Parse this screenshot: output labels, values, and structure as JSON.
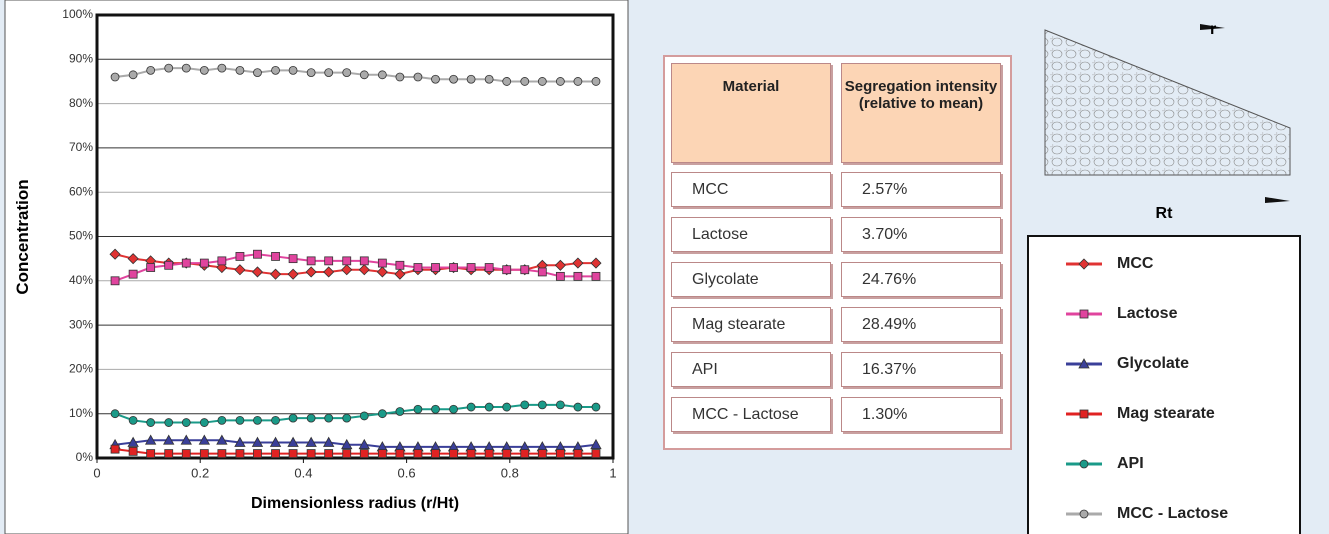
{
  "chart_data": {
    "type": "line",
    "x_label": "Dimensionless radius (r/Ht)",
    "y_label": "Concentration",
    "x": [
      0.035,
      0.07,
      0.104,
      0.139,
      0.173,
      0.208,
      0.242,
      0.277,
      0.311,
      0.346,
      0.38,
      0.415,
      0.449,
      0.484,
      0.518,
      0.553,
      0.587,
      0.622,
      0.656,
      0.691,
      0.725,
      0.76,
      0.794,
      0.829,
      0.863,
      0.898,
      0.932,
      0.967
    ],
    "xlim": [
      0,
      1
    ],
    "xticks": [
      0,
      0.2,
      0.4,
      0.6,
      0.8,
      1
    ],
    "ylim": [
      0,
      100
    ],
    "yticks": [
      {
        "value": 0,
        "label": "0%"
      },
      {
        "value": 10,
        "label": "10%"
      },
      {
        "value": 20,
        "label": "20%"
      },
      {
        "value": 30,
        "label": "30%"
      },
      {
        "value": 40,
        "label": "40%"
      },
      {
        "value": 50,
        "label": "50%"
      },
      {
        "value": 60,
        "label": "60%"
      },
      {
        "value": 70,
        "label": "70%"
      },
      {
        "value": 80,
        "label": "80%"
      },
      {
        "value": 90,
        "label": "90%"
      },
      {
        "value": 100,
        "label": "100%"
      }
    ],
    "grid": true,
    "series": [
      {
        "name": "MCC",
        "color": "#e03333",
        "marker": "diamond",
        "values": [
          46,
          45,
          44.5,
          44,
          44,
          43.5,
          43,
          42.5,
          42,
          41.5,
          41.5,
          42,
          42,
          42.5,
          42.5,
          42,
          41.5,
          42.5,
          42.5,
          43,
          42.5,
          42.5,
          42.5,
          42.5,
          43.5,
          43.5,
          44,
          44
        ]
      },
      {
        "name": "Lactose",
        "color": "#e0449e",
        "marker": "square",
        "values": [
          40,
          41.5,
          43,
          43.5,
          44,
          44,
          44.5,
          45.5,
          46,
          45.5,
          45,
          44.5,
          44.5,
          44.5,
          44.5,
          44,
          43.5,
          43,
          43,
          43,
          43,
          43,
          42.5,
          42.5,
          42,
          41,
          41,
          41
        ]
      },
      {
        "name": "Glycolate",
        "color": "#3a3f99",
        "marker": "triangle",
        "values": [
          3,
          3.5,
          4,
          4,
          4,
          4,
          4,
          3.5,
          3.5,
          3.5,
          3.5,
          3.5,
          3.5,
          3,
          3,
          2.5,
          2.5,
          2.5,
          2.5,
          2.5,
          2.5,
          2.5,
          2.5,
          2.5,
          2.5,
          2.5,
          2.5,
          3
        ]
      },
      {
        "name": "Mag stearate",
        "color": "#e02222",
        "marker": "square",
        "values": [
          2,
          1.5,
          1,
          1,
          1,
          1,
          1,
          1,
          1,
          1,
          1,
          1,
          1,
          1,
          1,
          1,
          1,
          1,
          1,
          1,
          1,
          1,
          1,
          1,
          1,
          1,
          1,
          1
        ]
      },
      {
        "name": "API",
        "color": "#1a9a88",
        "marker": "circle",
        "values": [
          10,
          8.5,
          8,
          8,
          8,
          8,
          8.5,
          8.5,
          8.5,
          8.5,
          9,
          9,
          9,
          9,
          9.5,
          10,
          10.5,
          11,
          11,
          11,
          11.5,
          11.5,
          11.5,
          12,
          12,
          12,
          11.5,
          11.5
        ]
      },
      {
        "name": "MCC - Lactose",
        "color": "#aaaaaa",
        "marker": "circle",
        "values": [
          86,
          86.5,
          87.5,
          88,
          88,
          87.5,
          88,
          87.5,
          87,
          87.5,
          87.5,
          87,
          87,
          87,
          86.5,
          86.5,
          86,
          86,
          85.5,
          85.5,
          85.5,
          85.5,
          85,
          85,
          85,
          85,
          85,
          85
        ]
      }
    ]
  },
  "table": {
    "header": [
      "Material",
      "Segregation intensity (relative to mean)"
    ],
    "rows": [
      [
        "MCC",
        "2.57%"
      ],
      [
        "Lactose",
        "3.70%"
      ],
      [
        "Glycolate",
        "24.76%"
      ],
      [
        "Mag stearate",
        "28.49%"
      ],
      [
        "API",
        "16.37%"
      ],
      [
        "MCC - Lactose",
        "1.30%"
      ]
    ]
  },
  "diagram": {
    "labels": [
      "r",
      "Rt"
    ]
  }
}
